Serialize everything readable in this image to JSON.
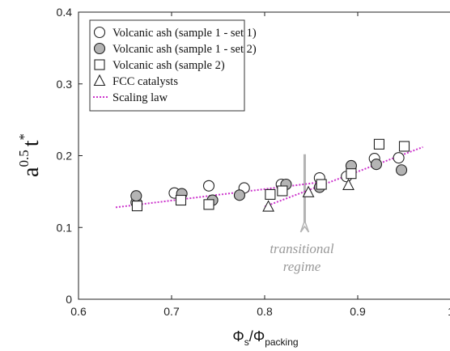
{
  "chart_data": {
    "type": "scatter",
    "xlim": [
      0.6,
      1.0
    ],
    "ylim": [
      0,
      0.4
    ],
    "x_ticks": [
      "0.6",
      "0.7",
      "0.8",
      "0.9",
      "1"
    ],
    "y_ticks": [
      "0",
      "0.1",
      "0.2",
      "0.3",
      "0.4"
    ],
    "ylabel": {
      "base": "a",
      "exp1": "0.5",
      "var": "t",
      "exp2": "*"
    },
    "xlabel": {
      "num": "Φ",
      "num_sub": "s",
      "slash": "/",
      "den": "Φ",
      "den_sub": "packing"
    },
    "series": [
      {
        "name": "Volcanic ash (sample 1 - set 1)",
        "marker": "circle-open",
        "points": [
          [
            0.662,
            0.135
          ],
          [
            0.703,
            0.148
          ],
          [
            0.74,
            0.158
          ],
          [
            0.778,
            0.155
          ],
          [
            0.818,
            0.16
          ],
          [
            0.859,
            0.169
          ],
          [
            0.888,
            0.171
          ],
          [
            0.918,
            0.196
          ],
          [
            0.944,
            0.197
          ]
        ]
      },
      {
        "name": "Volcanic ash (sample 1 - set 2)",
        "marker": "circle-filled",
        "points": [
          [
            0.662,
            0.144
          ],
          [
            0.711,
            0.147
          ],
          [
            0.744,
            0.138
          ],
          [
            0.773,
            0.145
          ],
          [
            0.823,
            0.16
          ],
          [
            0.859,
            0.156
          ],
          [
            0.893,
            0.186
          ],
          [
            0.92,
            0.188
          ],
          [
            0.947,
            0.18
          ]
        ]
      },
      {
        "name": "Volcanic ash (sample 2)",
        "marker": "square-open",
        "points": [
          [
            0.663,
            0.13
          ],
          [
            0.71,
            0.138
          ],
          [
            0.74,
            0.132
          ],
          [
            0.806,
            0.146
          ],
          [
            0.819,
            0.151
          ],
          [
            0.861,
            0.16
          ],
          [
            0.893,
            0.175
          ],
          [
            0.923,
            0.216
          ],
          [
            0.95,
            0.213
          ]
        ]
      },
      {
        "name": "FCC catalysts",
        "marker": "triangle-open",
        "points": [
          [
            0.804,
            0.129
          ],
          [
            0.847,
            0.149
          ],
          [
            0.89,
            0.159
          ]
        ]
      }
    ],
    "scaling_law": {
      "name": "Scaling law",
      "color": "#cc33cc",
      "segments": [
        [
          [
            0.64,
            0.128
          ],
          [
            0.86,
            0.163
          ]
        ],
        [
          [
            0.8,
            0.129
          ],
          [
            0.97,
            0.212
          ]
        ]
      ]
    },
    "marker_fill_gray": "#b4b4b4",
    "transition": {
      "x": 0.843,
      "y_top": 0.202,
      "y_bottom": 0.098,
      "line1": "transitional",
      "line2": "regime",
      "color": "#b3b3b3"
    },
    "legend_position": "top-left"
  }
}
